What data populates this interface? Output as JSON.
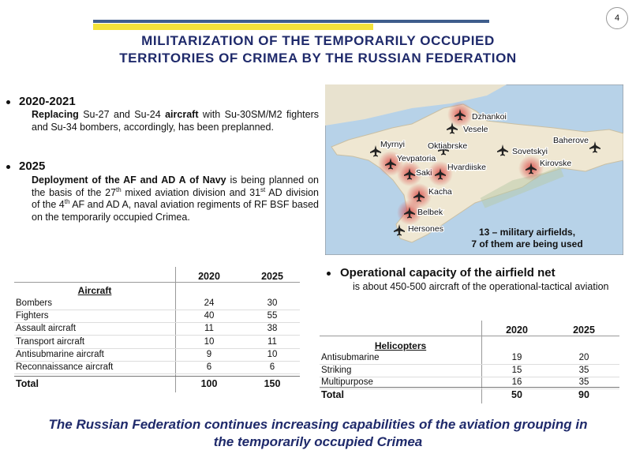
{
  "page_number": "4",
  "title": [
    "MILITARIZATION OF THE TEMPORARILY OCCUPIED",
    "TERRITORIES OF CRIMEA BY THE RUSSIAN FEDERATION"
  ],
  "sections": [
    {
      "heading": "2020-2021",
      "runs": [
        "Replacing",
        " Su-27 and Su-24 ",
        "aircraft",
        " with Su-30SM/M2 fighters and Su-34 bombers, accordingly, has been preplanned."
      ]
    },
    {
      "heading": "2025",
      "runs": [
        "Deployment of the AF and AD A of Navy",
        " is being planned on the basis of the 27",
        "th",
        " mixed aviation division and 31",
        "st",
        " AD division of the 4",
        "th",
        " AF and AD A, naval aviation regiments of RF BSF based on the temporarily occupied Crimea."
      ]
    }
  ],
  "map": {
    "airfields": [
      "Dzhankoi",
      "Vesele",
      "Oktiabrske",
      "Sovetskyi",
      "Baherove",
      "Myrnyi",
      "Yevpatoria",
      "Saki",
      "Hvardiiske",
      "Kirovske",
      "Kacha",
      "Belbek",
      "Hersones"
    ],
    "caption": [
      "13 – military airfields,",
      "7 of them are being used"
    ]
  },
  "aircraft_table": {
    "columns": [
      "2020",
      "2025"
    ],
    "group": "Aircraft",
    "rows": [
      [
        "Bombers",
        24,
        30
      ],
      [
        "Fighters",
        40,
        55
      ],
      [
        "Assault aircraft",
        11,
        38
      ],
      [
        "Transport aircraft",
        10,
        11
      ],
      [
        "Antisubmarine aircraft",
        9,
        10
      ],
      [
        "Reconnaissance aircraft",
        6,
        6
      ]
    ],
    "total": [
      "Total",
      100,
      150
    ]
  },
  "capacity": {
    "heading": "Operational capacity of the airfield net",
    "text": "is about 450-500 aircraft of the operational-tactical aviation"
  },
  "helicopter_table": {
    "columns": [
      "2020",
      "2025"
    ],
    "group": "Helicopters",
    "rows": [
      [
        "Antisubmarine",
        19,
        20
      ],
      [
        "Striking",
        15,
        35
      ],
      [
        "Multipurpose",
        16,
        35
      ]
    ],
    "total": [
      "Total",
      50,
      90
    ]
  },
  "footer": [
    "The Russian Federation continues increasing capabilities of the aviation grouping in",
    "the temporarily occupied Crimea"
  ]
}
